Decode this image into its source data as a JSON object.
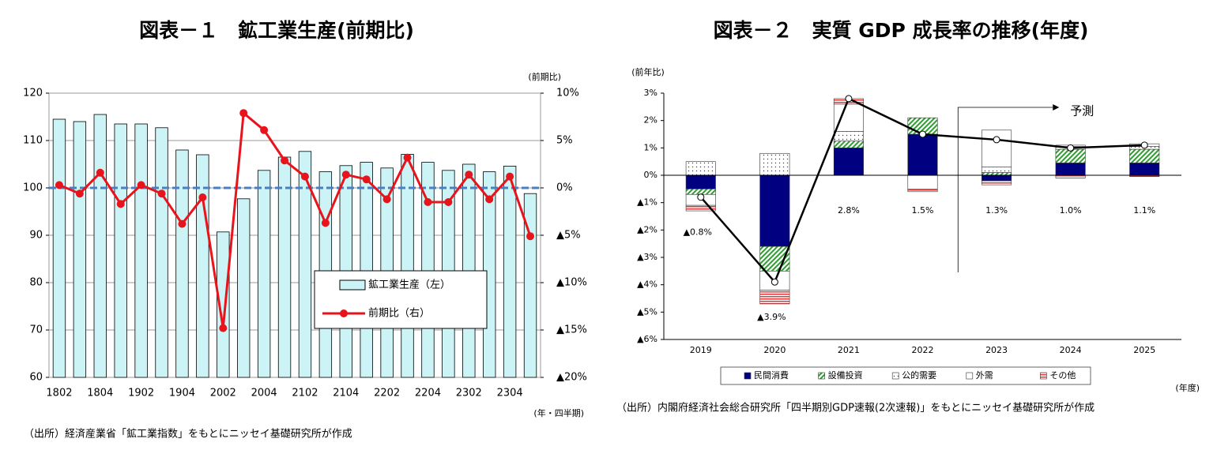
{
  "chart_data": [
    {
      "type": "bar",
      "title": "図表－１　鉱工業生産(前期比)",
      "categories": [
        "1802",
        null,
        "1804",
        null,
        "1902",
        null,
        "1904",
        null,
        "2002",
        null,
        "2004",
        null,
        "2102",
        null,
        "2104",
        null,
        "2202",
        null,
        "2204",
        null,
        "2302",
        null,
        "2304",
        null
      ],
      "series": [
        {
          "name": "鉱工業生産（左）",
          "type": "bar",
          "color": "#ccf4f6",
          "values": [
            114.5,
            114,
            115.5,
            113.5,
            113.5,
            112.7,
            108,
            107,
            90.7,
            97.7,
            103.7,
            106.5,
            107.7,
            103.4,
            104.7,
            105.4,
            104.2,
            107.1,
            105.4,
            103.7,
            105,
            103.4,
            104.6,
            98.8
          ]
        },
        {
          "name": "前期比（右）",
          "type": "line",
          "axis": "y2",
          "color": "#e8141c",
          "values": [
            0.3,
            -0.6,
            1.6,
            -1.7,
            0.3,
            -0.6,
            -3.8,
            -1,
            -14.8,
            7.9,
            6.1,
            2.9,
            1.2,
            -3.7,
            1.4,
            0.9,
            -1.2,
            3.2,
            -1.5,
            -1.5,
            1.4,
            -1.2,
            1.2,
            -5.1
          ]
        }
      ],
      "ylim": [
        60,
        120
      ],
      "yticks": [
        60,
        70,
        80,
        90,
        100,
        110,
        120
      ],
      "y2lim": [
        -20,
        10
      ],
      "y2ticks": [
        {
          "value": -20,
          "label": "▲20%"
        },
        {
          "value": -15,
          "label": "▲15%"
        },
        {
          "value": -10,
          "label": "▲10%"
        },
        {
          "value": -5,
          "label": "▲5%"
        },
        {
          "value": 0,
          "label": "0%"
        },
        {
          "value": 5,
          "label": "5%"
        },
        {
          "value": 10,
          "label": "10%"
        }
      ],
      "y2_label": "(前期比)",
      "x_label": "(年・四半期)",
      "hline": 100,
      "hline_color": "#4a7fc1",
      "grid": true,
      "legend": "lower right",
      "source": "（出所）経済産業省「鉱工業指数」をもとにニッセイ基礎研究所が作成"
    },
    {
      "type": "bar",
      "stacked": true,
      "title": "図表－２　実質 GDP 成長率の推移(年度)",
      "categories": [
        "2019",
        "2020",
        "2021",
        "2022",
        "2023",
        "2024",
        "2025"
      ],
      "series": [
        {
          "name": "民間消費",
          "color": "#000080",
          "values": [
            -0.5,
            -2.6,
            1.0,
            1.5,
            -0.2,
            0.45,
            0.45
          ]
        },
        {
          "name": "設備投資",
          "color": "#339933",
          "pattern": "hatch",
          "values": [
            -0.2,
            -0.9,
            0.25,
            0.6,
            0.1,
            0.5,
            0.5
          ]
        },
        {
          "name": "公的需要",
          "color": "#444444",
          "pattern": "dots",
          "values": [
            0.5,
            0.8,
            0.35,
            0,
            0.2,
            0.1,
            0.1
          ]
        },
        {
          "name": "外需",
          "color": "#ffffff",
          "values": [
            -0.4,
            -0.7,
            1.0,
            -0.5,
            1.35,
            0.05,
            0.1
          ]
        },
        {
          "name": "その他",
          "color": "#e03c3c",
          "pattern": "stripes",
          "values": [
            -0.2,
            -0.5,
            0.2,
            -0.1,
            -0.15,
            -0.1,
            -0.05
          ]
        }
      ],
      "total": {
        "color": "#000000",
        "values": [
          -0.8,
          -3.9,
          2.8,
          1.5,
          1.3,
          1.0,
          1.1
        ],
        "value_labels": [
          "▲0.8%",
          "▲3.9%",
          "2.8%",
          "1.5%",
          "1.3%",
          "1.0%",
          "1.1%"
        ]
      },
      "ylim": [
        -6,
        3
      ],
      "yticks": [
        {
          "value": -6,
          "label": "▲6%"
        },
        {
          "value": -5,
          "label": "▲5%"
        },
        {
          "value": -4,
          "label": "▲4%"
        },
        {
          "value": -3,
          "label": "▲3%"
        },
        {
          "value": -2,
          "label": "▲2%"
        },
        {
          "value": -1,
          "label": "▲1%"
        },
        {
          "value": 0,
          "label": "0%"
        },
        {
          "value": 1,
          "label": "1%"
        },
        {
          "value": 2,
          "label": "2%"
        },
        {
          "value": 3,
          "label": "3%"
        }
      ],
      "y_label": "(前年比)",
      "x_label": "(年度)",
      "annotation": {
        "text": "予測",
        "from_category": "2023"
      },
      "grid": false,
      "legend": "bottom",
      "source": "（出所）内閣府経済社会総合研究所「四半期別GDP速報(2次速報)」をもとにニッセイ基礎研究所が作成"
    }
  ]
}
